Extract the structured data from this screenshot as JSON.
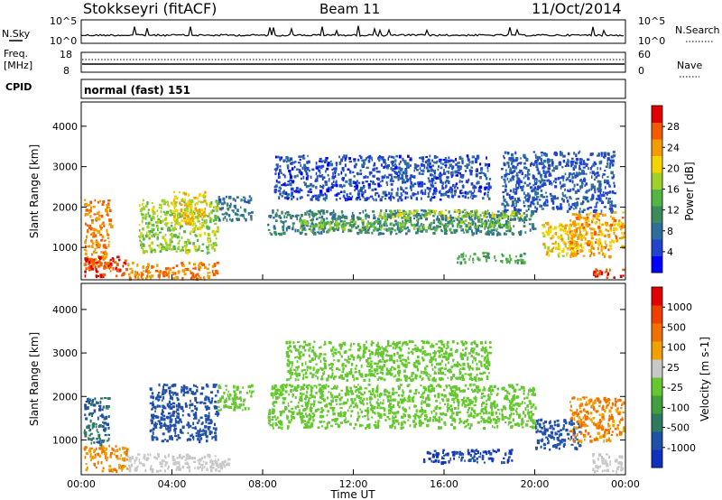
{
  "header": {
    "station": "Stokkseyri (fitACF)",
    "beam": "Beam 11",
    "date": "11/Oct/2014"
  },
  "noise_panel": {
    "left_label": "N.Sky",
    "left_ticks": [
      "10^5",
      "10^0"
    ],
    "right_ticks": [
      "10^5",
      "10^0"
    ],
    "right_label": "N.Search"
  },
  "freq_panel": {
    "label_line1": "Freq.",
    "label_line2": "[MHz]",
    "left_ticks": [
      "18",
      "8"
    ],
    "right_ticks": [
      "60",
      "0"
    ],
    "right_label": "Nave"
  },
  "cpid_panel": {
    "label": "CPID",
    "mode": "normal (fast) 151"
  },
  "chart_data": [
    {
      "type": "heatmap",
      "quantity": "power",
      "xlabel": "",
      "ylabel": "Slant Range [km]",
      "yticks": [
        1000,
        2000,
        3000,
        4000
      ],
      "ylim": [
        200,
        4600
      ],
      "xlim_hours": [
        0,
        24
      ],
      "colorbar": {
        "label": "Power [dB]",
        "ticks": [
          "28",
          "24",
          "20",
          "16",
          "12",
          "8",
          "4"
        ],
        "colors": [
          "#0000ff",
          "#2244cc",
          "#2d6e9b",
          "#3b8c5c",
          "#54b444",
          "#a0d02a",
          "#f4d400",
          "#f49b00",
          "#f45a00",
          "#e00000"
        ]
      },
      "regions": [
        {
          "t0": 0.1,
          "t1": 1.3,
          "r0": 500,
          "r1": 2200,
          "v": 24
        },
        {
          "t0": 0.1,
          "t1": 2.0,
          "r0": 300,
          "r1": 800,
          "v": 27
        },
        {
          "t0": 2.0,
          "t1": 6.0,
          "r0": 250,
          "r1": 650,
          "v": 24
        },
        {
          "t0": 2.5,
          "t1": 6.0,
          "r0": 900,
          "r1": 2200,
          "v": 16
        },
        {
          "t0": 4.0,
          "t1": 5.5,
          "r0": 1600,
          "r1": 2400,
          "v": 20
        },
        {
          "t0": 6.0,
          "t1": 7.5,
          "r0": 1700,
          "r1": 2300,
          "v": 8
        },
        {
          "t0": 8.2,
          "t1": 20.0,
          "r0": 1350,
          "r1": 1950,
          "v": 9
        },
        {
          "t0": 9.5,
          "t1": 19.0,
          "r0": 1450,
          "r1": 1700,
          "v": 14
        },
        {
          "t0": 13.0,
          "t1": 19.5,
          "r0": 1750,
          "r1": 1950,
          "v": 17
        },
        {
          "t0": 8.5,
          "t1": 18.0,
          "r0": 2200,
          "r1": 3300,
          "v": 5
        },
        {
          "t0": 16.5,
          "t1": 19.5,
          "r0": 650,
          "r1": 900,
          "v": 12
        },
        {
          "t0": 20.3,
          "t1": 22.0,
          "r0": 800,
          "r1": 1700,
          "v": 20
        },
        {
          "t0": 21.5,
          "t1": 23.9,
          "r0": 800,
          "r1": 1900,
          "v": 22
        },
        {
          "t0": 22.5,
          "t1": 23.9,
          "r0": 280,
          "r1": 500,
          "v": 27
        },
        {
          "t0": 18.5,
          "t1": 23.5,
          "r0": 1900,
          "r1": 3400,
          "v": 6
        }
      ]
    },
    {
      "type": "heatmap",
      "quantity": "velocity",
      "xlabel": "Time UT",
      "ylabel": "Slant Range [km]",
      "yticks": [
        1000,
        2000,
        3000,
        4000
      ],
      "ylim": [
        200,
        4600
      ],
      "xlim_hours": [
        0,
        24
      ],
      "xticks": [
        "00:00",
        "04:00",
        "08:00",
        "12:00",
        "16:00",
        "20:00",
        "00:00"
      ],
      "colorbar": {
        "label": "Velocity [m s-1]",
        "ticks": [
          "1000",
          "500",
          "100",
          "25",
          "-25",
          "-100",
          "-500",
          "-1000"
        ],
        "colors": [
          "#1030c0",
          "#2050a8",
          "#2e7a60",
          "#40a040",
          "#66c830",
          "#c8c8c8",
          "#f0a000",
          "#f07000",
          "#f04000",
          "#e00000"
        ]
      },
      "regions": [
        {
          "t0": 0.1,
          "t1": 2.0,
          "r0": 300,
          "r1": 900,
          "v": 300
        },
        {
          "t0": 0.1,
          "t1": 1.2,
          "r0": 900,
          "r1": 2000,
          "v": -300
        },
        {
          "t0": 2.0,
          "t1": 6.5,
          "r0": 300,
          "r1": 700,
          "v": 80
        },
        {
          "t0": 3.0,
          "t1": 6.0,
          "r0": 1000,
          "r1": 2300,
          "v": -400
        },
        {
          "t0": 6.0,
          "t1": 7.5,
          "r0": 1700,
          "r1": 2300,
          "v": 0
        },
        {
          "t0": 8.2,
          "t1": 20.0,
          "r0": 1300,
          "r1": 2300,
          "v": 0
        },
        {
          "t0": 9.0,
          "t1": 18.0,
          "r0": 2400,
          "r1": 3300,
          "v": 0
        },
        {
          "t0": 15.0,
          "t1": 19.0,
          "r0": 500,
          "r1": 800,
          "v": -500
        },
        {
          "t0": 20.0,
          "t1": 22.0,
          "r0": 800,
          "r1": 1500,
          "v": -400
        },
        {
          "t0": 21.5,
          "t1": 23.9,
          "r0": 1000,
          "r1": 2000,
          "v": 300
        },
        {
          "t0": 22.5,
          "t1": 23.9,
          "r0": 300,
          "r1": 700,
          "v": 60
        }
      ]
    }
  ]
}
